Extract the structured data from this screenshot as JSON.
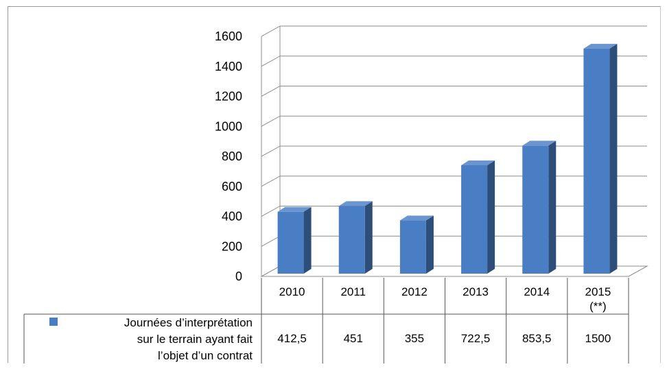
{
  "chart_data": {
    "type": "bar",
    "categories": [
      "2010",
      "2011",
      "2012",
      "2013",
      "2014",
      "2015"
    ],
    "category_notes": [
      "",
      "",
      "",
      "",
      "",
      "(**)"
    ],
    "series": [
      {
        "name": "Journées d’interprétation sur le terrain ayant fait l’objet d’un contrat",
        "name_lines": [
          "Journées d’interprétation",
          "sur le terrain ayant fait",
          "l’objet d’un contrat"
        ],
        "values": [
          412.5,
          451,
          355,
          722.5,
          853.5,
          1500
        ],
        "value_labels": [
          "412,5",
          "451",
          "355",
          "722,5",
          "853,5",
          "1500"
        ],
        "color": "#4a7ec4"
      }
    ],
    "ylim": [
      0,
      1600
    ],
    "yticks": [
      "0",
      "200",
      "400",
      "600",
      "800",
      "1000",
      "1200",
      "1400",
      "1600"
    ],
    "grid": true,
    "legend_placement": "data-table-left",
    "style": "3d-column"
  }
}
